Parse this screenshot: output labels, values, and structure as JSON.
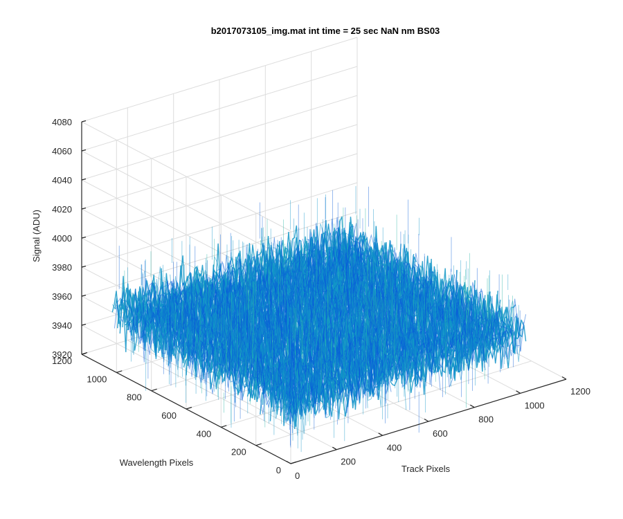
{
  "chart_data": {
    "type": "surface",
    "title": "b2017073105_img.mat int time = 25 sec  NaN nm BS03",
    "xlabel": "Track Pixels",
    "ylabel": "Wavelength Pixels",
    "zlabel": "Signal (ADU)",
    "xlim": [
      0,
      1200
    ],
    "ylim": [
      0,
      1200
    ],
    "zlim": [
      3920,
      4080
    ],
    "x_ticks": [
      "0",
      "200",
      "400",
      "600",
      "800",
      "1000",
      "1200"
    ],
    "y_ticks": [
      "0",
      "200",
      "400",
      "600",
      "800",
      "1000",
      "1200"
    ],
    "z_ticks": [
      "3920",
      "3940",
      "3960",
      "3980",
      "4000",
      "4020",
      "4040",
      "4060",
      "4080"
    ],
    "grid": true,
    "surface": {
      "x_extent": [
        0,
        1024
      ],
      "y_extent": [
        0,
        1024
      ],
      "mean_signal": 3960,
      "noise_range": [
        3940,
        3980
      ]
    },
    "colors": {
      "surface_low": "#0a5ed8",
      "surface_mid": "#1296c8",
      "surface_high": "#2bb7a6",
      "grid": "#dcdcdc",
      "axis": "#262626"
    }
  }
}
